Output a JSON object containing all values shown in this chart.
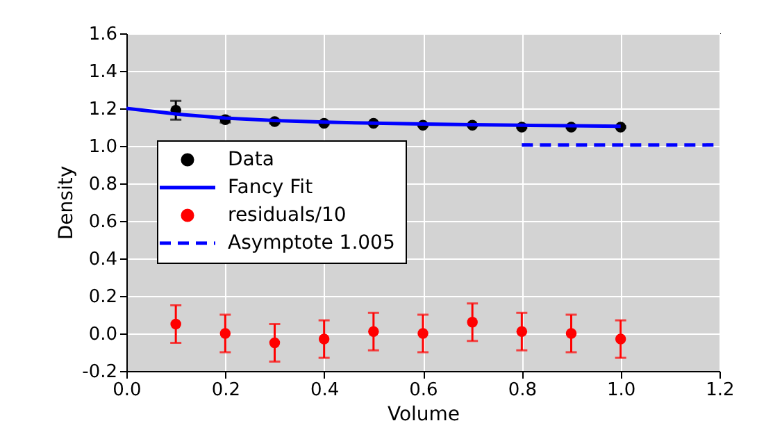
{
  "chart_data": {
    "type": "scatter",
    "xlabel": "Volume",
    "ylabel": "Density",
    "xlim": [
      0,
      1.2
    ],
    "ylim": [
      -0.2,
      1.6
    ],
    "xticks": [
      {
        "value": 0,
        "label": "0.0"
      },
      {
        "value": 0.2,
        "label": "0.2"
      },
      {
        "value": 0.4,
        "label": "0.4"
      },
      {
        "value": 0.6,
        "label": "0.6"
      },
      {
        "value": 0.8,
        "label": "0.8"
      },
      {
        "value": 1,
        "label": "1.0"
      },
      {
        "value": 1.2,
        "label": "1.2"
      }
    ],
    "yticks": [
      {
        "value": -0.2,
        "label": "-0.2"
      },
      {
        "value": 0,
        "label": "0.0"
      },
      {
        "value": 0.2,
        "label": "0.2"
      },
      {
        "value": 0.4,
        "label": "0.4"
      },
      {
        "value": 0.6,
        "label": "0.6"
      },
      {
        "value": 0.8,
        "label": "0.8"
      },
      {
        "value": 1,
        "label": "1.0"
      },
      {
        "value": 1.2,
        "label": "1.2"
      },
      {
        "value": 1.4,
        "label": "1.4"
      },
      {
        "value": 1.6,
        "label": "1.6"
      }
    ],
    "grid": true,
    "legend": "left",
    "series": [
      {
        "name": "Data",
        "marker": "circle",
        "color": "#000000",
        "x": [
          0.1,
          0.2,
          0.3,
          0.4,
          0.5,
          0.6,
          0.7,
          0.8,
          0.9,
          1.0
        ],
        "values": [
          1.19,
          1.14,
          1.13,
          1.12,
          1.12,
          1.11,
          1.11,
          1.1,
          1.1,
          1.1
        ],
        "errors": [
          0.05,
          0.015,
          0.01,
          0.005,
          0.005,
          0.005,
          0.005,
          0.005,
          0.005,
          0.005
        ]
      },
      {
        "name": "Fancy Fit",
        "type": "line",
        "color": "#0000ff",
        "line_style": "solid",
        "x": [
          0,
          0.1,
          0.2,
          0.3,
          0.4,
          0.5,
          0.6,
          0.7,
          0.8,
          0.9,
          1.0
        ],
        "values": [
          1.2,
          1.17,
          1.148,
          1.135,
          1.127,
          1.121,
          1.117,
          1.113,
          1.11,
          1.107,
          1.105
        ]
      },
      {
        "name": "residuals/10",
        "marker": "circle",
        "color": "#ff0000",
        "x": [
          0.1,
          0.2,
          0.3,
          0.4,
          0.5,
          0.6,
          0.7,
          0.8,
          0.9,
          1.0
        ],
        "values": [
          0.05,
          0,
          -0.05,
          -0.03,
          0.01,
          0,
          0.06,
          0.01,
          0,
          -0.03
        ],
        "errors": [
          0.1,
          0.1,
          0.1,
          0.1,
          0.1,
          0.1,
          0.1,
          0.1,
          0.1,
          0.1
        ]
      },
      {
        "name": "Asymptote 1.005",
        "type": "line",
        "color": "#0000ff",
        "line_style": "dashed",
        "x": [
          0.8,
          1.2
        ],
        "values": [
          1.005,
          1.005
        ]
      }
    ]
  }
}
